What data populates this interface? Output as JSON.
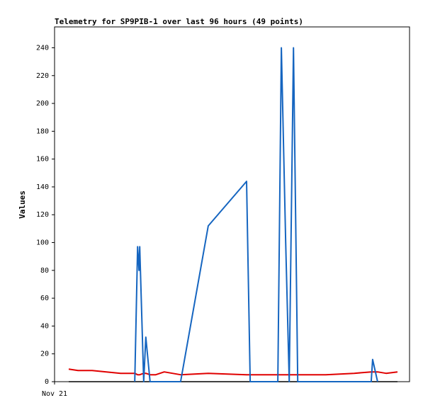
{
  "chart_data": {
    "type": "line",
    "title": "Telemetry for SP9PIB-1 over last 96 hours (49 points)",
    "y_label": "Values",
    "x": [
      4.0,
      6.6,
      10.6,
      14.6,
      18.6,
      22.6,
      23.4,
      23.8,
      24.0,
      25.1,
      25.7,
      26.9,
      28.5,
      30.9,
      35.5,
      43.3,
      54.1,
      55.1,
      62.9,
      63.9,
      65.1,
      66.1,
      67.3,
      68.5,
      76.4,
      84.4,
      89.2,
      89.6,
      91.0,
      93.4,
      96.6
    ],
    "series": [
      {
        "color": "#000000",
        "values": [
          0,
          0,
          0,
          0,
          0,
          0,
          0,
          0,
          0,
          0,
          0,
          0,
          0,
          0,
          0,
          0,
          0,
          0,
          0,
          0,
          0,
          0,
          0,
          0,
          0,
          0,
          0,
          0,
          0,
          0,
          0
        ]
      },
      {
        "color": "#e00000",
        "values": [
          9,
          8,
          8,
          7,
          6,
          6,
          5,
          5,
          5,
          6,
          6,
          5,
          5,
          7,
          5,
          6,
          5,
          5,
          5,
          5,
          5,
          5,
          5,
          5,
          5,
          6,
          7,
          7,
          7,
          6,
          7
        ]
      },
      {
        "color": "#1565c0",
        "values": [
          null,
          null,
          null,
          null,
          null,
          0,
          97,
          80,
          97,
          0,
          32,
          0,
          0,
          0,
          0,
          112,
          144,
          0,
          0,
          240,
          100,
          0,
          240,
          0,
          0,
          0,
          0,
          16,
          0,
          null,
          null
        ]
      }
    ],
    "xlim": [
      0,
      100
    ],
    "xticks": [
      {
        "value": 0,
        "label": "Nov 21"
      }
    ],
    "ylim": [
      0,
      255
    ],
    "yticks": [
      0,
      20,
      40,
      60,
      80,
      100,
      120,
      140,
      160,
      180,
      200,
      220,
      240
    ],
    "grid": false
  }
}
